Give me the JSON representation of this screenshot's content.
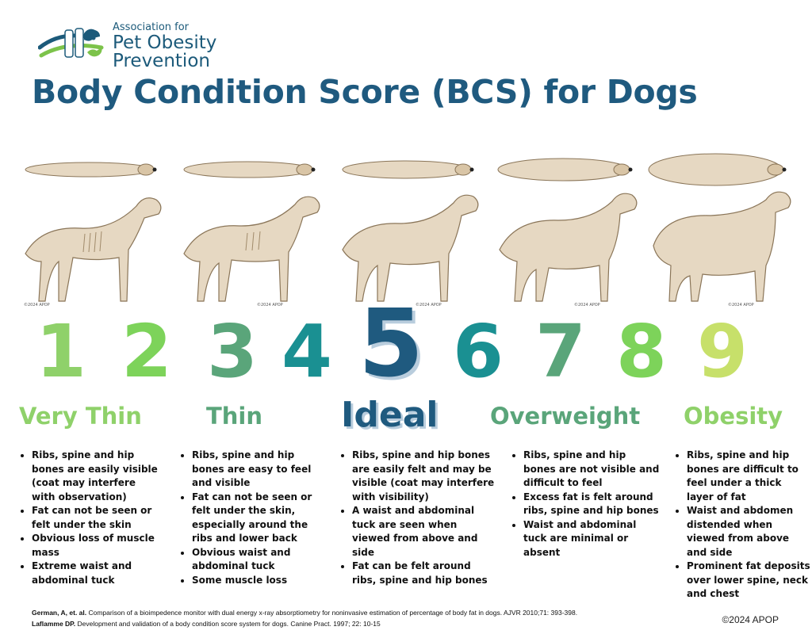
{
  "logo": {
    "line1": "Association for",
    "line2": "Pet Obesity",
    "line3": "Prevention"
  },
  "title": "Body Condition Score (BCS) for Dogs",
  "scores": [
    {
      "label": "1",
      "color": "#8fd16a"
    },
    {
      "label": "2",
      "color": "#7dd35a"
    },
    {
      "label": "3",
      "color": "#5aa57a"
    },
    {
      "label": "4",
      "color": "#1a9092"
    },
    {
      "label": "5",
      "color": "#1f5a7f"
    },
    {
      "label": "6",
      "color": "#1a9092"
    },
    {
      "label": "7",
      "color": "#5aa57a"
    },
    {
      "label": "8",
      "color": "#7dd35a"
    },
    {
      "label": "9",
      "color": "#c7e06a"
    }
  ],
  "categories": [
    {
      "name": "Very Thin",
      "color": "#8fd16a",
      "bullets": [
        "Ribs, spine and hip bones are easily visible (coat may interfere with observation)",
        "Fat can not be seen or felt under the skin",
        "Obvious loss of muscle mass",
        "Extreme waist and abdominal tuck"
      ]
    },
    {
      "name": "Thin",
      "color": "#5aa57a",
      "bullets": [
        "Ribs, spine and hip bones are easy to feel and visible",
        "Fat can not be seen or felt under the skin, especially around the ribs and lower back",
        "Obvious waist and abdominal tuck",
        "Some muscle loss"
      ]
    },
    {
      "name": "Ideal",
      "color": "#1f5a7f",
      "bullets": [
        "Ribs, spine and hip bones are easily felt and may be visible (coat may interfere with visibility)",
        "A waist and abdominal tuck are seen when viewed from above and side",
        "Fat can be felt around ribs, spine and hip bones"
      ]
    },
    {
      "name": "Overweight",
      "color": "#5aa57a",
      "bullets": [
        "Ribs, spine and hip bones are not visible and difficult to feel",
        "Excess fat is felt around ribs, spine and hip bones",
        "Waist and abdominal tuck are minimal or absent"
      ]
    },
    {
      "name": "Obesity",
      "color": "#8fd16a",
      "bullets": [
        "Ribs, spine and hip bones are difficult to feel under a thick layer of fat",
        "Waist and abdomen distended when viewed from above and side",
        "Prominent fat deposits over lower spine, neck and chest"
      ]
    }
  ],
  "references": {
    "ref1_author": "German, A, et. al.",
    "ref1_text": " Comparison of a bioimpedence monitor with dual energy x-ray absorptiometry for noninvasive estimation of percentage of body fat in dogs. AJVR 2010;71: 393-398.",
    "ref2_author": "Laflamme DP.",
    "ref2_text": " Development and validation of a body condition score system for dogs. Canine Pract. 1997; 22: 10-15"
  },
  "copyright": "©2024 APOP",
  "image_stamp": "©2024 APOP"
}
